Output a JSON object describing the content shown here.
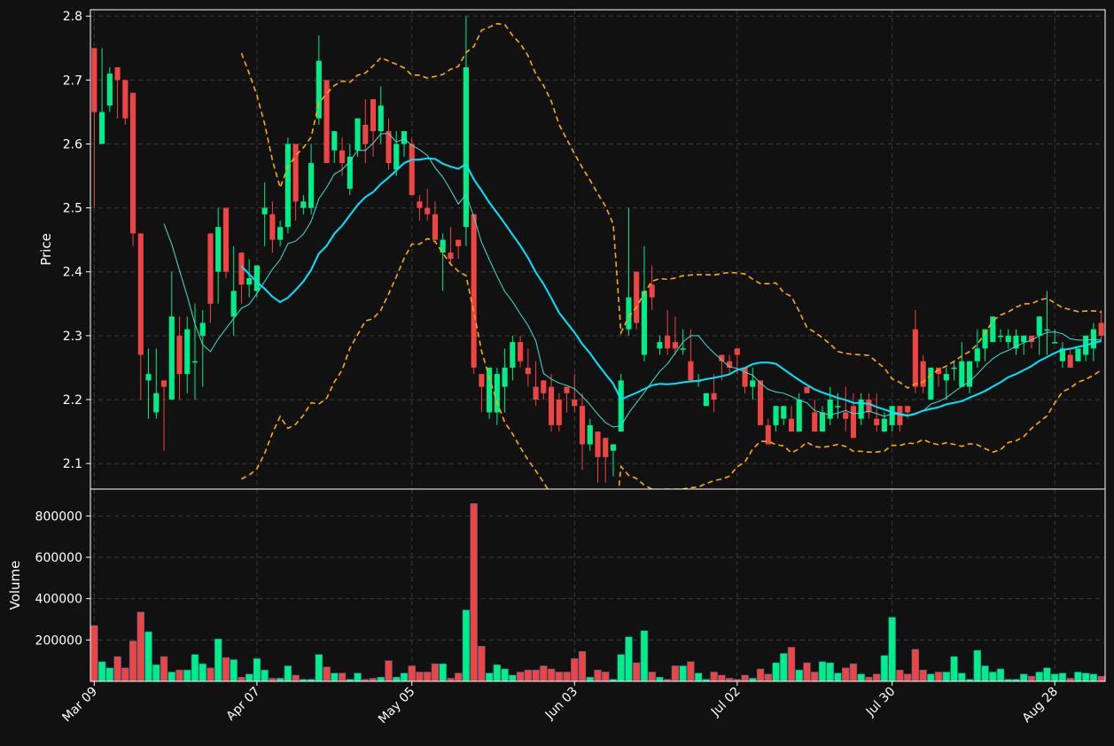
{
  "colors": {
    "background": "#111111",
    "up": "#00ee88",
    "down": "#ee4444",
    "sma_fast": "#40e0d0",
    "sma_slow": "#00e5ff",
    "bands": "#ffaa00",
    "axes": "#ffffff",
    "grid": "#3a3a3a"
  },
  "chart_data": {
    "type": "candlestick",
    "grid": true,
    "legend": "none",
    "price_panel": {
      "ylabel": "Price",
      "ylim": [
        2.06,
        2.81
      ],
      "yticks": [
        "2.1",
        "2.2",
        "2.3",
        "2.4",
        "2.5",
        "2.6",
        "2.7",
        "2.8"
      ]
    },
    "volume_panel": {
      "ylabel": "Volume",
      "ylim": [
        0,
        930000
      ],
      "yticks": [
        "200000",
        "400000",
        "600000",
        "800000"
      ]
    },
    "xtick_labels": [
      "Mar 09",
      "Apr 07",
      "May 05",
      "Jun 03",
      "Jul 02",
      "Jul 30",
      "Aug 28"
    ],
    "xtick_index": [
      0,
      21,
      41,
      62,
      83,
      103,
      124
    ],
    "ohlcv": [
      [
        2.75,
        2.75,
        2.5,
        2.65,
        270000
      ],
      [
        2.6,
        2.75,
        2.6,
        2.65,
        95000
      ],
      [
        2.66,
        2.72,
        2.65,
        2.71,
        65000
      ],
      [
        2.72,
        2.72,
        2.64,
        2.7,
        120000
      ],
      [
        2.7,
        2.7,
        2.63,
        2.64,
        65000
      ],
      [
        2.68,
        2.68,
        2.44,
        2.46,
        195000
      ],
      [
        2.46,
        2.46,
        2.2,
        2.27,
        335000
      ],
      [
        2.23,
        2.28,
        2.17,
        2.24,
        240000
      ],
      [
        2.18,
        2.28,
        2.17,
        2.21,
        80000
      ],
      [
        2.23,
        2.23,
        2.12,
        2.22,
        120000
      ],
      [
        2.2,
        2.4,
        2.2,
        2.33,
        45000
      ],
      [
        2.3,
        2.33,
        2.2,
        2.24,
        55000
      ],
      [
        2.24,
        2.33,
        2.21,
        2.31,
        55000
      ],
      [
        2.26,
        2.35,
        2.2,
        2.26,
        130000
      ],
      [
        2.3,
        2.34,
        2.22,
        2.32,
        85000
      ],
      [
        2.46,
        2.46,
        2.32,
        2.35,
        65000
      ],
      [
        2.4,
        2.5,
        2.35,
        2.47,
        205000
      ],
      [
        2.5,
        2.5,
        2.39,
        2.4,
        115000
      ],
      [
        2.33,
        2.44,
        2.3,
        2.37,
        105000
      ],
      [
        2.43,
        2.43,
        2.35,
        2.38,
        20000
      ],
      [
        2.38,
        2.42,
        2.36,
        2.39,
        35000
      ],
      [
        2.37,
        2.41,
        2.36,
        2.41,
        110000
      ],
      [
        2.49,
        2.54,
        2.44,
        2.5,
        55000
      ],
      [
        2.49,
        2.51,
        2.43,
        2.45,
        15000
      ],
      [
        2.45,
        2.48,
        2.44,
        2.47,
        15000
      ],
      [
        2.47,
        2.61,
        2.46,
        2.6,
        75000
      ],
      [
        2.6,
        2.6,
        2.48,
        2.51,
        30000
      ],
      [
        2.5,
        2.52,
        2.49,
        2.51,
        10000
      ],
      [
        2.5,
        2.6,
        2.49,
        2.57,
        10000
      ],
      [
        2.64,
        2.77,
        2.63,
        2.73,
        130000
      ],
      [
        2.7,
        2.7,
        2.57,
        2.57,
        70000
      ],
      [
        2.59,
        2.62,
        2.57,
        2.62,
        40000
      ],
      [
        2.59,
        2.61,
        2.55,
        2.57,
        40000
      ],
      [
        2.53,
        2.6,
        2.52,
        2.58,
        10000
      ],
      [
        2.59,
        2.64,
        2.58,
        2.64,
        40000
      ],
      [
        2.63,
        2.67,
        2.57,
        2.6,
        10000
      ],
      [
        2.67,
        2.67,
        2.58,
        2.62,
        15000
      ],
      [
        2.62,
        2.69,
        2.6,
        2.66,
        20000
      ],
      [
        2.62,
        2.64,
        2.56,
        2.57,
        100000
      ],
      [
        2.56,
        2.62,
        2.55,
        2.6,
        20000
      ],
      [
        2.6,
        2.62,
        2.58,
        2.62,
        40000
      ],
      [
        2.6,
        2.61,
        2.52,
        2.52,
        75000
      ],
      [
        2.51,
        2.52,
        2.48,
        2.5,
        45000
      ],
      [
        2.5,
        2.53,
        2.48,
        2.49,
        45000
      ],
      [
        2.49,
        2.51,
        2.45,
        2.45,
        85000
      ],
      [
        2.43,
        2.46,
        2.37,
        2.45,
        85000
      ],
      [
        2.43,
        2.47,
        2.41,
        2.42,
        15000
      ],
      [
        2.45,
        2.45,
        2.42,
        2.44,
        40000
      ],
      [
        2.47,
        2.8,
        2.44,
        2.72,
        345000
      ],
      [
        2.49,
        2.49,
        2.24,
        2.25,
        860000
      ],
      [
        2.24,
        2.24,
        2.18,
        2.22,
        170000
      ],
      [
        2.18,
        2.25,
        2.17,
        2.25,
        40000
      ],
      [
        2.18,
        2.25,
        2.16,
        2.24,
        80000
      ],
      [
        2.22,
        2.28,
        2.18,
        2.25,
        60000
      ],
      [
        2.25,
        2.3,
        2.23,
        2.29,
        30000
      ],
      [
        2.29,
        2.3,
        2.25,
        2.26,
        45000
      ],
      [
        2.25,
        2.28,
        2.22,
        2.24,
        55000
      ],
      [
        2.22,
        2.26,
        2.19,
        2.2,
        55000
      ],
      [
        2.23,
        2.23,
        2.2,
        2.21,
        75000
      ],
      [
        2.22,
        2.24,
        2.15,
        2.16,
        60000
      ],
      [
        2.2,
        2.21,
        2.15,
        2.16,
        45000
      ],
      [
        2.22,
        2.22,
        2.18,
        2.21,
        45000
      ],
      [
        2.2,
        2.24,
        2.18,
        2.19,
        110000
      ],
      [
        2.19,
        2.21,
        2.09,
        2.13,
        145000
      ],
      [
        2.13,
        2.17,
        2.12,
        2.16,
        20000
      ],
      [
        2.15,
        2.15,
        2.07,
        2.11,
        55000
      ],
      [
        2.14,
        2.14,
        2.07,
        2.11,
        45000
      ],
      [
        2.12,
        2.13,
        2.08,
        2.13,
        10000
      ],
      [
        2.15,
        2.24,
        2.15,
        2.23,
        130000
      ],
      [
        2.31,
        2.5,
        2.3,
        2.36,
        215000
      ],
      [
        2.4,
        2.4,
        2.31,
        2.32,
        90000
      ],
      [
        2.27,
        2.44,
        2.26,
        2.37,
        245000
      ],
      [
        2.38,
        2.41,
        2.34,
        2.36,
        45000
      ],
      [
        2.28,
        2.3,
        2.27,
        2.29,
        20000
      ],
      [
        2.3,
        2.34,
        2.27,
        2.28,
        10000
      ],
      [
        2.29,
        2.33,
        2.27,
        2.28,
        75000
      ],
      [
        2.28,
        2.31,
        2.27,
        2.28,
        75000
      ],
      [
        2.26,
        2.31,
        2.24,
        2.23,
        95000
      ],
      [
        2.23,
        2.24,
        2.22,
        2.23,
        40000
      ],
      [
        2.19,
        2.21,
        2.19,
        2.21,
        10000
      ],
      [
        2.21,
        2.24,
        2.18,
        2.2,
        45000
      ],
      [
        2.27,
        2.27,
        2.23,
        2.26,
        30000
      ],
      [
        2.26,
        2.27,
        2.24,
        2.25,
        15000
      ],
      [
        2.28,
        2.28,
        2.24,
        2.27,
        10000
      ],
      [
        2.25,
        2.25,
        2.21,
        2.22,
        30000
      ],
      [
        2.22,
        2.25,
        2.2,
        2.23,
        15000
      ],
      [
        2.23,
        2.23,
        2.16,
        2.16,
        60000
      ],
      [
        2.16,
        2.17,
        2.14,
        2.13,
        35000
      ],
      [
        2.16,
        2.19,
        2.15,
        2.19,
        90000
      ],
      [
        2.17,
        2.19,
        2.16,
        2.19,
        135000
      ],
      [
        2.17,
        2.19,
        2.15,
        2.15,
        165000
      ],
      [
        2.15,
        2.21,
        2.15,
        2.2,
        55000
      ],
      [
        2.22,
        2.21,
        2.21,
        2.21,
        90000
      ],
      [
        2.18,
        2.2,
        2.15,
        2.15,
        45000
      ],
      [
        2.15,
        2.19,
        2.15,
        2.18,
        95000
      ],
      [
        2.17,
        2.22,
        2.16,
        2.2,
        90000
      ],
      [
        2.19,
        2.21,
        2.17,
        2.19,
        40000
      ],
      [
        2.18,
        2.22,
        2.15,
        2.17,
        65000
      ],
      [
        2.19,
        2.21,
        2.14,
        2.14,
        85000
      ],
      [
        2.17,
        2.21,
        2.16,
        2.2,
        35000
      ],
      [
        2.2,
        2.21,
        2.17,
        2.18,
        20000
      ],
      [
        2.17,
        2.21,
        2.15,
        2.16,
        35000
      ],
      [
        2.15,
        2.18,
        2.15,
        2.17,
        125000
      ],
      [
        2.16,
        2.19,
        2.15,
        2.19,
        310000
      ],
      [
        2.19,
        2.19,
        2.15,
        2.16,
        55000
      ],
      [
        2.19,
        2.19,
        2.17,
        2.18,
        35000
      ],
      [
        2.31,
        2.34,
        2.21,
        2.22,
        155000
      ],
      [
        2.26,
        2.27,
        2.21,
        2.22,
        55000
      ],
      [
        2.2,
        2.25,
        2.2,
        2.25,
        35000
      ],
      [
        2.25,
        2.25,
        2.22,
        2.24,
        45000
      ],
      [
        2.23,
        2.25,
        2.2,
        2.24,
        45000
      ],
      [
        2.25,
        2.26,
        2.23,
        2.25,
        120000
      ],
      [
        2.22,
        2.29,
        2.22,
        2.26,
        40000
      ],
      [
        2.22,
        2.26,
        2.21,
        2.26,
        10000
      ],
      [
        2.26,
        2.31,
        2.25,
        2.28,
        150000
      ],
      [
        2.28,
        2.31,
        2.26,
        2.31,
        75000
      ],
      [
        2.29,
        2.33,
        2.29,
        2.33,
        45000
      ],
      [
        2.3,
        2.31,
        2.29,
        2.3,
        60000
      ],
      [
        2.29,
        2.31,
        2.28,
        2.3,
        10000
      ],
      [
        2.28,
        2.31,
        2.27,
        2.3,
        10000
      ],
      [
        2.29,
        2.3,
        2.27,
        2.3,
        35000
      ],
      [
        2.3,
        2.3,
        2.28,
        2.29,
        25000
      ],
      [
        2.3,
        2.33,
        2.27,
        2.33,
        45000
      ],
      [
        2.31,
        2.37,
        2.27,
        2.31,
        65000
      ],
      [
        2.29,
        2.31,
        2.29,
        2.29,
        35000
      ],
      [
        2.26,
        2.29,
        2.25,
        2.28,
        40000
      ],
      [
        2.27,
        2.28,
        2.25,
        2.25,
        15000
      ],
      [
        2.26,
        2.28,
        2.26,
        2.28,
        45000
      ],
      [
        2.27,
        2.3,
        2.26,
        2.3,
        40000
      ],
      [
        2.28,
        2.32,
        2.26,
        2.31,
        35000
      ],
      [
        2.32,
        2.34,
        2.29,
        2.3,
        25000
      ]
    ],
    "sma_fast_window": 10,
    "sma_slow_window": 20,
    "bollinger": {
      "window": 20,
      "std": 2
    }
  }
}
